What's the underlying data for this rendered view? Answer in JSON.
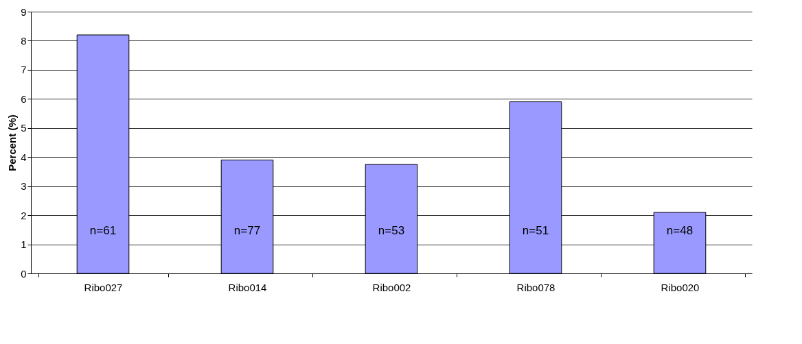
{
  "chart_data": {
    "type": "bar",
    "ylabel": "Percent (%)",
    "categories": [
      "Ribo027",
      "Ribo014",
      "Ribo002",
      "Ribo078",
      "Ribo020"
    ],
    "values": [
      8.2,
      3.9,
      3.75,
      5.9,
      2.1
    ],
    "color": "#9999ff",
    "ylim": [
      0,
      9
    ],
    "yticks": [
      0,
      1,
      2,
      3,
      4,
      5,
      6,
      7,
      8,
      9
    ],
    "grid": "y",
    "annotations": [
      "n=61",
      "n=77",
      "n=53",
      "n=51",
      "n=48"
    ]
  }
}
